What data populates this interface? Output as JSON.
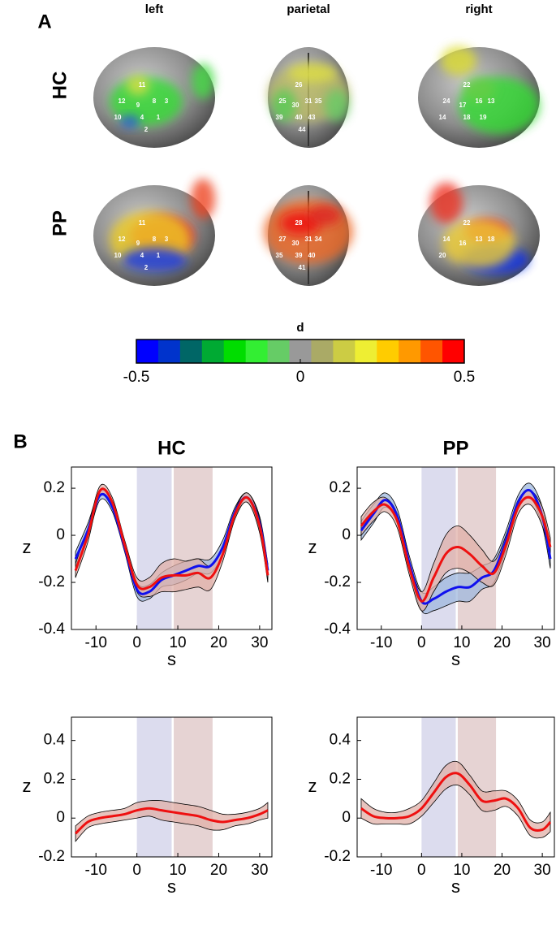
{
  "panel_a": {
    "label": "A",
    "columns": [
      "left",
      "parietal",
      "right"
    ],
    "rows": [
      "HC",
      "PP"
    ],
    "brains": [
      {
        "labels": [
          "11",
          "12",
          "9",
          "8",
          "3",
          "10",
          "4",
          "1",
          "2"
        ]
      },
      {
        "labels": [
          "26",
          "25",
          "30",
          "31",
          "35",
          "39",
          "40",
          "43",
          "44"
        ]
      },
      {
        "labels": [
          "22",
          "24",
          "17",
          "16",
          "13",
          "14",
          "18",
          "19"
        ]
      },
      {
        "labels": [
          "11",
          "12",
          "9",
          "8",
          "3",
          "10",
          "4",
          "1",
          "2"
        ]
      },
      {
        "labels": [
          "28",
          "27",
          "30",
          "31",
          "34",
          "35",
          "39",
          "40",
          "41"
        ]
      },
      {
        "labels": [
          "22",
          "14",
          "16",
          "13",
          "18",
          "20"
        ]
      }
    ]
  },
  "panel_b": {
    "label": "B"
  },
  "chart_data": [
    {
      "type": "colorbar",
      "title": "d",
      "xlim": [
        -0.5,
        0.5
      ],
      "xticks": [
        -0.5,
        0,
        0.5
      ],
      "colors": [
        "#0000ff",
        "#0033cc",
        "#006666",
        "#00aa33",
        "#00dd00",
        "#33ee33",
        "#66cc66",
        "#999999",
        "#aaaa66",
        "#cccc44",
        "#eeee33",
        "#ffcc00",
        "#ff9900",
        "#ff5500",
        "#ff0000"
      ]
    },
    {
      "type": "line",
      "title": "HC",
      "xlabel": "s",
      "ylabel": "z",
      "xlim": [
        -16,
        33
      ],
      "ylim": [
        -0.4,
        0.29
      ],
      "xticks": [
        -10,
        0,
        10,
        20,
        30
      ],
      "yticks": [
        -0.4,
        -0.2,
        0,
        0.2
      ],
      "spans": [
        {
          "range": [
            0,
            8.5
          ],
          "color": "#dcdcee"
        },
        {
          "range": [
            9,
            18.5
          ],
          "color": "#e6d3d3"
        }
      ],
      "x": [
        -15,
        -12,
        -9,
        -6,
        -3,
        0,
        3,
        6,
        9,
        12,
        15,
        18,
        21,
        24,
        27,
        30,
        32
      ],
      "series": [
        {
          "color": "#1010ee",
          "band_color": "#9fb8dd",
          "values": [
            -0.1,
            0.02,
            0.17,
            0.12,
            -0.05,
            -0.23,
            -0.24,
            -0.19,
            -0.17,
            -0.15,
            -0.13,
            -0.13,
            -0.05,
            0.1,
            0.16,
            0.05,
            -0.15
          ],
          "error": [
            0.03,
            0.03,
            0.02,
            0.02,
            0.02,
            0.03,
            0.03,
            0.03,
            0.04,
            0.04,
            0.03,
            0.03,
            0.03,
            0.02,
            0.02,
            0.03,
            0.03
          ]
        },
        {
          "color": "#ee1010",
          "band_color": "#e0b0a8",
          "values": [
            -0.15,
            0.0,
            0.19,
            0.14,
            -0.04,
            -0.21,
            -0.22,
            -0.18,
            -0.17,
            -0.17,
            -0.16,
            -0.18,
            -0.08,
            0.09,
            0.16,
            0.04,
            -0.17
          ],
          "error": [
            0.03,
            0.03,
            0.02,
            0.02,
            0.02,
            0.03,
            0.04,
            0.06,
            0.07,
            0.06,
            0.06,
            0.05,
            0.03,
            0.02,
            0.02,
            0.03,
            0.03
          ]
        }
      ]
    },
    {
      "type": "line",
      "title": "PP",
      "xlabel": "s",
      "ylabel": "z",
      "xlim": [
        -16,
        33
      ],
      "ylim": [
        -0.4,
        0.29
      ],
      "xticks": [
        -10,
        0,
        10,
        20,
        30
      ],
      "yticks": [
        -0.4,
        -0.2,
        0,
        0.2
      ],
      "spans": [
        {
          "range": [
            0,
            8.5
          ],
          "color": "#dcdcee"
        },
        {
          "range": [
            9,
            18.5
          ],
          "color": "#e6d3d3"
        }
      ],
      "x": [
        -15,
        -12,
        -9,
        -6,
        -3,
        0,
        3,
        6,
        9,
        12,
        15,
        18,
        21,
        24,
        27,
        30,
        32
      ],
      "series": [
        {
          "color": "#1010ee",
          "band_color": "#9fb8dd",
          "values": [
            0.02,
            0.09,
            0.15,
            0.08,
            -0.12,
            -0.28,
            -0.27,
            -0.24,
            -0.22,
            -0.22,
            -0.18,
            -0.15,
            -0.02,
            0.14,
            0.19,
            0.08,
            -0.1
          ],
          "error": [
            0.04,
            0.04,
            0.03,
            0.03,
            0.03,
            0.04,
            0.05,
            0.06,
            0.06,
            0.06,
            0.05,
            0.05,
            0.04,
            0.03,
            0.03,
            0.04,
            0.04
          ]
        },
        {
          "color": "#ee1010",
          "band_color": "#e0b0a8",
          "values": [
            0.04,
            0.1,
            0.13,
            0.06,
            -0.14,
            -0.28,
            -0.18,
            -0.08,
            -0.05,
            -0.08,
            -0.13,
            -0.16,
            -0.04,
            0.12,
            0.16,
            0.08,
            -0.05
          ],
          "error": [
            0.04,
            0.04,
            0.03,
            0.03,
            0.03,
            0.04,
            0.06,
            0.08,
            0.09,
            0.08,
            0.07,
            0.05,
            0.04,
            0.03,
            0.03,
            0.04,
            0.04
          ]
        }
      ]
    },
    {
      "type": "line",
      "xlabel": "s",
      "ylabel": "z",
      "xlim": [
        -16,
        33
      ],
      "ylim": [
        -0.2,
        0.52
      ],
      "xticks": [
        -10,
        0,
        10,
        20,
        30
      ],
      "yticks": [
        -0.2,
        0,
        0.2,
        0.4
      ],
      "spans": [
        {
          "range": [
            0,
            8.5
          ],
          "color": "#dcdcee"
        },
        {
          "range": [
            9,
            18.5
          ],
          "color": "#e6d3d3"
        }
      ],
      "x": [
        -15,
        -12,
        -9,
        -6,
        -3,
        0,
        3,
        6,
        9,
        12,
        15,
        18,
        21,
        24,
        27,
        30,
        32
      ],
      "series": [
        {
          "color": "#ee1010",
          "band_color": "#e0b0a8",
          "values": [
            -0.08,
            -0.02,
            0.0,
            0.01,
            0.02,
            0.04,
            0.05,
            0.04,
            0.03,
            0.02,
            0.01,
            -0.01,
            -0.02,
            -0.01,
            0.0,
            0.02,
            0.04
          ],
          "error": [
            0.04,
            0.03,
            0.03,
            0.03,
            0.03,
            0.04,
            0.04,
            0.05,
            0.05,
            0.05,
            0.05,
            0.05,
            0.04,
            0.03,
            0.03,
            0.03,
            0.04
          ]
        }
      ]
    },
    {
      "type": "line",
      "xlabel": "s",
      "ylabel": "z",
      "xlim": [
        -16,
        33
      ],
      "ylim": [
        -0.2,
        0.52
      ],
      "xticks": [
        -10,
        0,
        10,
        20,
        30
      ],
      "yticks": [
        -0.2,
        0,
        0.2,
        0.4
      ],
      "spans": [
        {
          "range": [
            0,
            8.5
          ],
          "color": "#dcdcee"
        },
        {
          "range": [
            9,
            18.5
          ],
          "color": "#e6d3d3"
        }
      ],
      "x": [
        -15,
        -12,
        -9,
        -6,
        -3,
        0,
        3,
        6,
        9,
        12,
        15,
        18,
        21,
        24,
        27,
        30,
        32
      ],
      "series": [
        {
          "color": "#ee1010",
          "band_color": "#e0b0a8",
          "values": [
            0.05,
            0.01,
            0.0,
            0.0,
            0.01,
            0.05,
            0.13,
            0.21,
            0.23,
            0.17,
            0.09,
            0.09,
            0.1,
            0.05,
            -0.05,
            -0.06,
            -0.02
          ],
          "error": [
            0.05,
            0.04,
            0.03,
            0.03,
            0.04,
            0.04,
            0.05,
            0.06,
            0.06,
            0.05,
            0.05,
            0.05,
            0.04,
            0.04,
            0.04,
            0.04,
            0.05
          ]
        }
      ]
    }
  ]
}
